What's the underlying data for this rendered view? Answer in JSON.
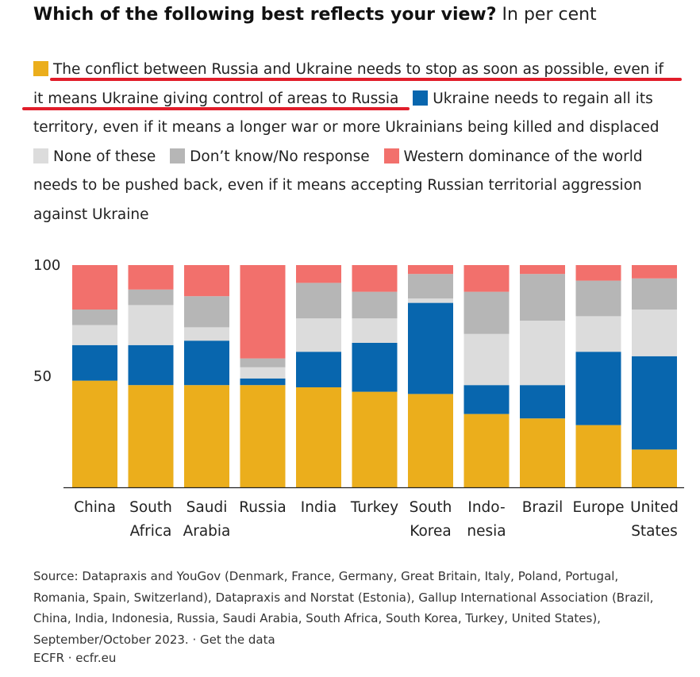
{
  "title": "Which of the following best reflects your view?",
  "unit": "In per cent",
  "legend": [
    {
      "label": "The conflict between Russia and Ukraine needs to stop as soon as possible, even if it means Ukraine giving control of areas to Russia",
      "color": "#EBAE1C"
    },
    {
      "label": "Ukraine needs to regain all its territory, even if it means a longer war or more Ukrainians being killed and displaced",
      "color": "#0866AE"
    },
    {
      "label": "None of these",
      "color": "#DCDCDC"
    },
    {
      "label": "Don’t know/No response",
      "color": "#B6B6B6"
    },
    {
      "label": "Western dominance of the world needs to be pushed back, even if it means accepting Russian territorial aggression against Ukraine",
      "color": "#F2706C"
    }
  ],
  "annotation_color": "#E11D2A",
  "chart_data": {
    "type": "bar",
    "stacked": true,
    "categories": [
      [
        "China"
      ],
      [
        "South",
        "Africa"
      ],
      [
        "Saudi",
        "Arabia"
      ],
      [
        "Russia"
      ],
      [
        "India"
      ],
      [
        "Turkey"
      ],
      [
        "South",
        "Korea"
      ],
      [
        "Indo-",
        "nesia"
      ],
      [
        "Brazil"
      ],
      [
        "Europe"
      ],
      [
        "United",
        "States"
      ]
    ],
    "series": [
      {
        "name": "The conflict between Russia and Ukraine needs to stop as soon as possible, even if it means Ukraine giving control of areas to Russia",
        "values": [
          48,
          46,
          46,
          46,
          45,
          43,
          42,
          33,
          31,
          28,
          17
        ]
      },
      {
        "name": "Ukraine needs to regain all its territory, even if it means a longer war or more Ukrainians being killed and displaced",
        "values": [
          16,
          18,
          20,
          3,
          16,
          22,
          41,
          13,
          15,
          33,
          42
        ]
      },
      {
        "name": "None of these",
        "values": [
          9,
          18,
          6,
          5,
          15,
          11,
          2,
          23,
          29,
          16,
          21
        ]
      },
      {
        "name": "Don’t know/No response",
        "values": [
          7,
          7,
          14,
          4,
          16,
          12,
          11,
          19,
          21,
          16,
          14
        ]
      },
      {
        "name": "Western dominance of the world needs to be pushed back, even if it means accepting Russian territorial aggression against Ukraine",
        "values": [
          20,
          11,
          14,
          42,
          8,
          12,
          4,
          12,
          4,
          7,
          6
        ]
      }
    ],
    "ylim": [
      0,
      100
    ],
    "yticks": [
      "100",
      "50"
    ]
  },
  "source": "Source: Datapraxis and YouGov (Denmark, France, Germany, Great Britain, Italy, Poland, Portugal, Romania, Spain, Switzerland), Datapraxis and Norstat (Estonia), Gallup International Association (Brazil, China, India, Indonesia, Russia, Saudi Arabia, South Africa, South Korea, Turkey, United States), September/October 2023. · Get the data",
  "credit": "ECFR · ecfr.eu"
}
